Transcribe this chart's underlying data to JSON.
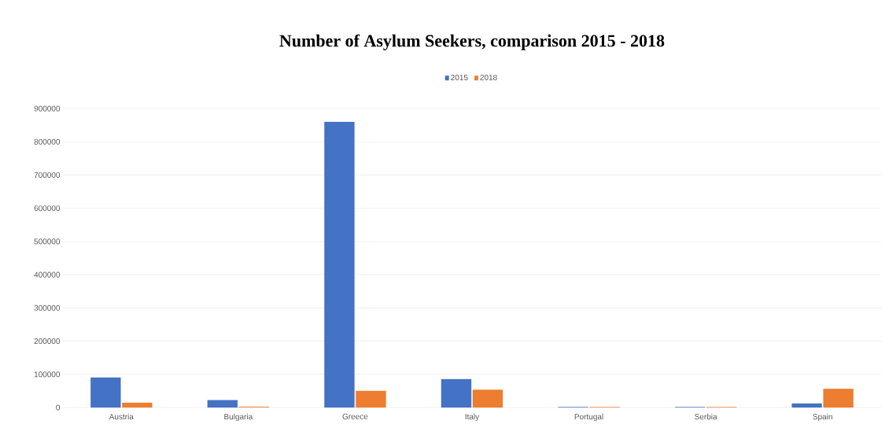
{
  "chart_data": {
    "type": "bar",
    "title": "Number of Asylum Seekers, comparison 2015 - 2018",
    "categories": [
      "Austria",
      "Bulgaria",
      "Greece",
      "Italy",
      "Portugal",
      "Serbia",
      "Spain"
    ],
    "series": [
      {
        "name": "2015",
        "color": "#4472c4",
        "values": [
          90000,
          22000,
          860000,
          85000,
          1000,
          1000,
          12000
        ]
      },
      {
        "name": "2018",
        "color": "#ed7d31",
        "values": [
          14000,
          2000,
          50000,
          53000,
          1000,
          1000,
          56000
        ]
      }
    ],
    "ylim": [
      0,
      900000
    ],
    "yticks": [
      0,
      100000,
      200000,
      300000,
      400000,
      500000,
      600000,
      700000,
      800000,
      900000
    ],
    "grid": "y",
    "legend": "top"
  }
}
